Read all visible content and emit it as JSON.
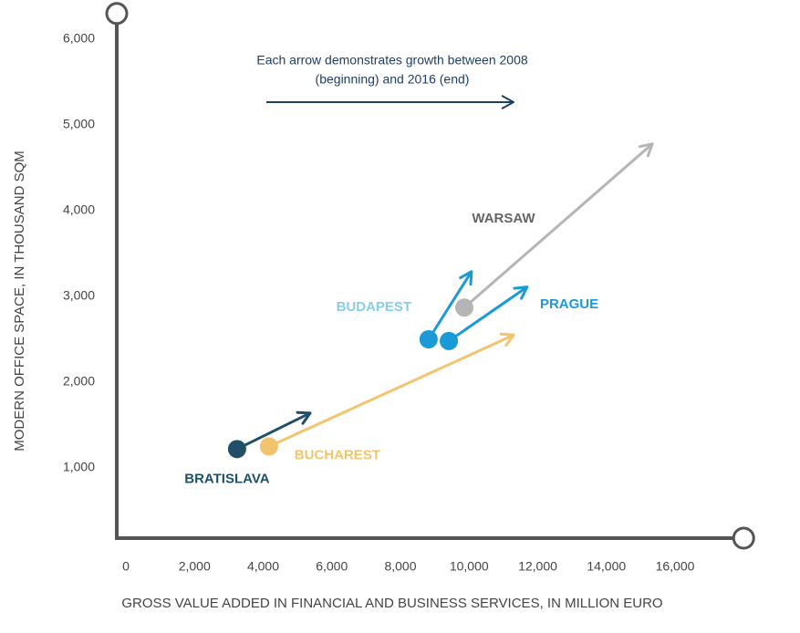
{
  "chart_data": {
    "type": "arrow",
    "annotation": [
      "Each arrow demonstrates growth between 2008",
      "(beginning) and 2016 (end)"
    ],
    "x_label": "GROSS VALUE ADDED IN FINANCIAL AND BUSINESS SERVICES, IN MILLION EURO",
    "y_label": "MODERN OFFICE SPACE, IN THOUSAND  SQM",
    "xlim": [
      0,
      18000
    ],
    "xticks": [
      0,
      {
        "value": 2000,
        "label": "2,000"
      },
      {
        "value": 4000,
        "label": "4,000"
      },
      {
        "value": 6000,
        "label": "6,000"
      },
      {
        "value": 8000,
        "label": "8,000"
      },
      {
        "value": 10000,
        "label": "10,000"
      },
      {
        "value": 12000,
        "label": "12,000"
      },
      {
        "value": 14000,
        "label": "14,000"
      },
      {
        "value": 16000,
        "label": "16,000"
      }
    ],
    "ylim": [
      0,
      6300
    ],
    "yticks": [
      {
        "value": 1000,
        "label": "1,000"
      },
      {
        "value": 2000,
        "label": "2,000"
      },
      {
        "value": 3000,
        "label": "3,000"
      },
      {
        "value": 4000,
        "label": "4,000"
      },
      {
        "value": 5000,
        "label": "5,000"
      },
      {
        "value": 6000,
        "label": "6,000"
      }
    ],
    "grid": false,
    "series": [
      {
        "name": "WARSAW",
        "color": "#b5b5b5",
        "label_color": "#666666",
        "x": [
          9860,
          15340
        ],
        "values": [
          2870,
          4780
        ]
      },
      {
        "name": "BUDAPEST",
        "color": "#1a9ad6",
        "label_color": "#86cdee",
        "x": [
          8820,
          10070
        ],
        "values": [
          2500,
          3290
        ]
      },
      {
        "name": "PRAGUE",
        "color": "#1a9ad6",
        "label_color": "#1a9ad6",
        "x": [
          9410,
          11690
        ],
        "values": [
          2480,
          3110
        ]
      },
      {
        "name": "BRATISLAVA",
        "color": "#1f5068",
        "label_color": "#1f5068",
        "x": [
          3240,
          5370
        ],
        "values": [
          1220,
          1640
        ]
      },
      {
        "name": "BUCHAREST",
        "color": "#f2c46d",
        "label_color": "#f2c46d",
        "x": [
          4170,
          11300
        ],
        "values": [
          1250,
          2550
        ]
      }
    ]
  }
}
